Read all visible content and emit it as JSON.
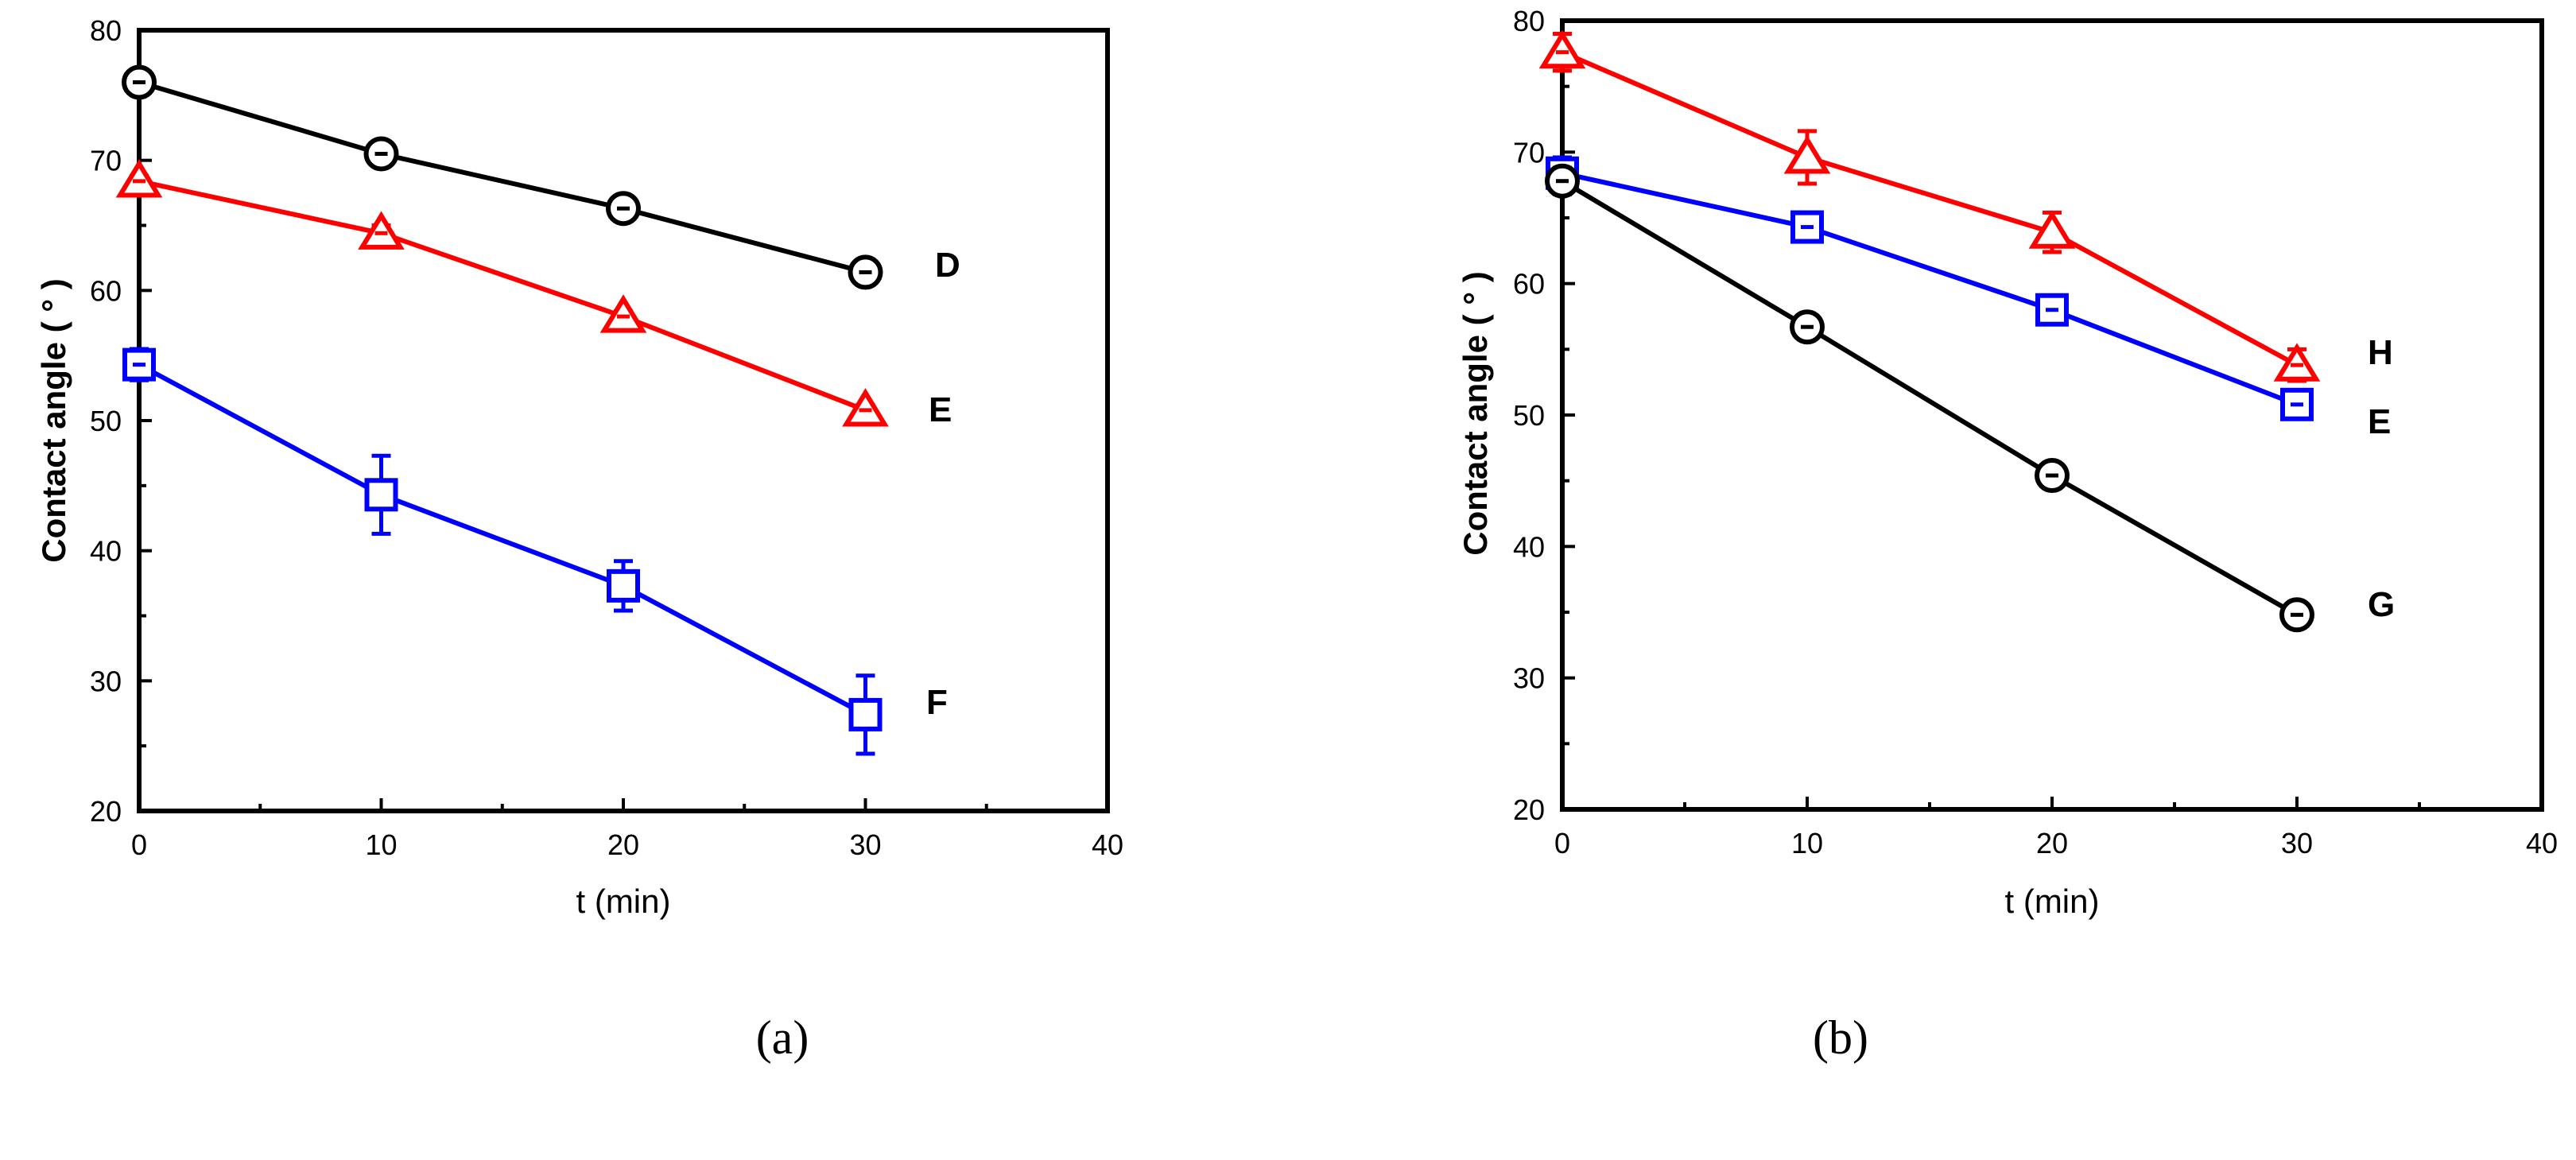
{
  "chart_data": [
    {
      "type": "line",
      "panel_label": "(a)",
      "xlabel": "t (min)",
      "ylabel": "Contact angle ( ° )",
      "xlim": [
        0,
        40
      ],
      "ylim": [
        20,
        80
      ],
      "xticks": [
        0,
        10,
        20,
        30,
        40
      ],
      "yticks": [
        20,
        30,
        40,
        50,
        60,
        70,
        80
      ],
      "x": [
        0,
        10,
        20,
        30
      ],
      "series": [
        {
          "name": "D",
          "color": "#000000",
          "marker": "circle",
          "values": [
            76.0,
            70.5,
            66.3,
            61.4
          ],
          "errors": [
            0.4,
            0.4,
            0.4,
            0.4
          ]
        },
        {
          "name": "E",
          "color": "#ff0000",
          "marker": "triangle",
          "values": [
            68.4,
            64.4,
            58.0,
            50.8
          ],
          "errors": [
            0.4,
            0.6,
            0.4,
            0.4
          ]
        },
        {
          "name": "F",
          "color": "#0000ff",
          "marker": "square",
          "values": [
            54.3,
            44.3,
            37.3,
            27.4
          ],
          "errors": [
            1.2,
            3.0,
            1.9,
            3.0
          ]
        }
      ]
    },
    {
      "type": "line",
      "panel_label": "(b)",
      "xlabel": "t (min)",
      "ylabel": "Contact angle ( ° )",
      "xlim": [
        0,
        40
      ],
      "ylim": [
        20,
        80
      ],
      "xticks": [
        0,
        10,
        20,
        30,
        40
      ],
      "yticks": [
        20,
        30,
        40,
        50,
        60,
        70,
        80
      ],
      "x": [
        0,
        10,
        20,
        30
      ],
      "series": [
        {
          "name": "H",
          "color": "#ff0000",
          "marker": "triangle",
          "values": [
            77.6,
            69.6,
            63.9,
            53.8
          ],
          "errors": [
            1.4,
            2.0,
            1.5,
            1.2
          ]
        },
        {
          "name": "E",
          "color": "#0000ff",
          "marker": "square",
          "values": [
            68.4,
            64.3,
            58.0,
            50.8
          ],
          "errors": [
            1.2,
            0.5,
            0.4,
            0.4
          ]
        },
        {
          "name": "G",
          "color": "#000000",
          "marker": "circle",
          "values": [
            67.8,
            56.7,
            45.4,
            34.8
          ],
          "errors": [
            1.0,
            0.8,
            0.8,
            0.8
          ]
        }
      ]
    }
  ]
}
